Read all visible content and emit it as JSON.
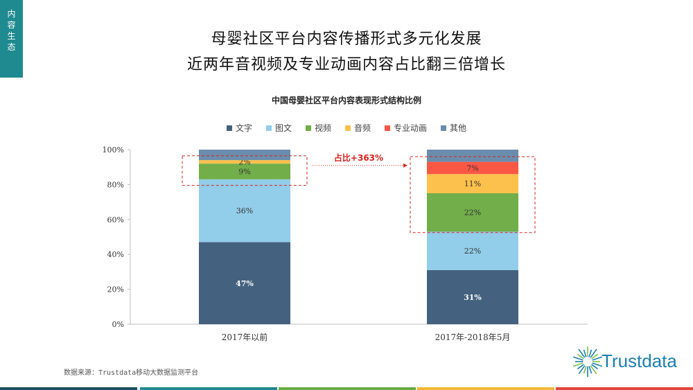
{
  "side_tab": [
    "内",
    "容",
    "生",
    "态"
  ],
  "title_line1": "母婴社区平台内容传播形式多元化发展",
  "title_line2": "近两年音视频及专业动画内容占比翻三倍增长",
  "source": "数据来源：Trustdata移动大数据监测平台",
  "logo_text": "Trustdata",
  "colors": {
    "accent": "#1f8a8f",
    "highlight_box": "#d9231d",
    "footer": [
      "#1f4e5f",
      "#1f8a8f",
      "#6aab46",
      "#f0b93a",
      "#e2483d"
    ]
  },
  "chart_data": {
    "type": "bar",
    "stacked": true,
    "title": "中国母婴社区平台内容表现形式结构比例",
    "categories": [
      "2017年以前",
      "2017年-2018年5月"
    ],
    "ylim": [
      0,
      100
    ],
    "yticks": [
      "0%",
      "20%",
      "40%",
      "60%",
      "80%",
      "100%"
    ],
    "legend_position": "top",
    "series": [
      {
        "name": "文字",
        "color": "#44627f",
        "values": [
          47,
          31
        ],
        "labels": [
          "47%",
          "31%"
        ]
      },
      {
        "name": "图文",
        "color": "#92cde9",
        "values": [
          36,
          22
        ],
        "labels": [
          "36%",
          "22%"
        ]
      },
      {
        "name": "视频",
        "color": "#72ae4a",
        "values": [
          9,
          22
        ],
        "labels": [
          "9%",
          "22%"
        ]
      },
      {
        "name": "音频",
        "color": "#fbc14c",
        "values": [
          2,
          11
        ],
        "labels": [
          "2%",
          "11%"
        ]
      },
      {
        "name": "专业动画",
        "color": "#fb5745",
        "values": [
          0,
          7
        ],
        "labels": [
          "",
          "7%"
        ]
      },
      {
        "name": "其他",
        "color": "#6b8dad",
        "values": [
          6,
          7
        ],
        "labels": [
          "",
          ""
        ]
      }
    ],
    "annotation": "占比+363%"
  }
}
